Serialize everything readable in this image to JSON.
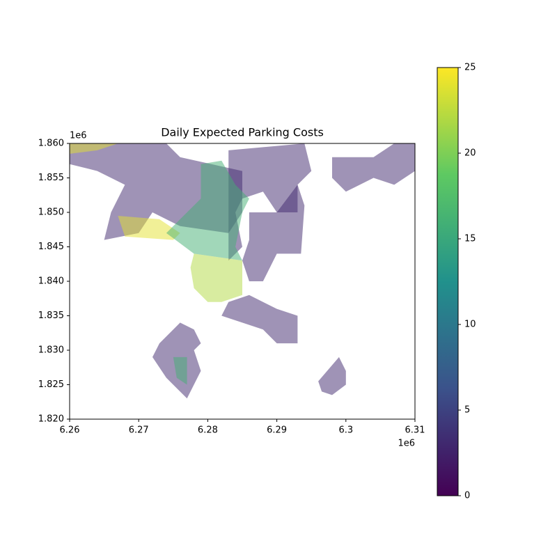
{
  "chart_data": {
    "type": "choropleth",
    "title": "Daily Expected Parking Costs",
    "xlim": [
      6.26,
      6.31
    ],
    "xticks": [
      6.26,
      6.27,
      6.28,
      6.29,
      6.3,
      6.31
    ],
    "ylim": [
      1.82,
      1.86
    ],
    "yticks": [
      {
        "value": 1.82,
        "label": "1.820"
      },
      {
        "value": 1.825,
        "label": "1.825"
      },
      {
        "value": 1.83,
        "label": "1.830"
      },
      {
        "value": 1.835,
        "label": "1.835"
      },
      {
        "value": 1.84,
        "label": "1.840"
      },
      {
        "value": 1.845,
        "label": "1.845"
      },
      {
        "value": 1.85,
        "label": "1.850"
      },
      {
        "value": 1.855,
        "label": "1.855"
      },
      {
        "value": 1.86,
        "label": "1.860"
      }
    ],
    "x_offset_text": "1e6",
    "y_offset_text": "1e6",
    "colormap": "viridis",
    "alpha": 0.5,
    "clim": [
      0,
      25
    ],
    "cticks": [
      0,
      5,
      10,
      15,
      20,
      25
    ],
    "regions": [
      {
        "value": 3,
        "outline": [
          [
            6.26,
            1.86
          ],
          [
            6.274,
            1.86
          ],
          [
            6.276,
            1.858
          ],
          [
            6.285,
            1.856
          ],
          [
            6.285,
            1.85
          ],
          [
            6.283,
            1.847
          ],
          [
            6.276,
            1.848
          ],
          [
            6.272,
            1.85
          ],
          [
            6.27,
            1.847
          ],
          [
            6.265,
            1.846
          ],
          [
            6.266,
            1.85
          ],
          [
            6.268,
            1.854
          ],
          [
            6.264,
            1.856
          ],
          [
            6.26,
            1.857
          ]
        ]
      },
      {
        "value": 24,
        "outline": [
          [
            6.26,
            1.86
          ],
          [
            6.267,
            1.86
          ],
          [
            6.264,
            1.859
          ],
          [
            6.26,
            1.8585
          ]
        ]
      },
      {
        "value": 24,
        "outline": [
          [
            6.267,
            1.8495
          ],
          [
            6.273,
            1.849
          ],
          [
            6.276,
            1.847
          ],
          [
            6.275,
            1.846
          ],
          [
            6.268,
            1.8465
          ]
        ]
      },
      {
        "value": 3,
        "outline": [
          [
            6.283,
            1.859
          ],
          [
            6.294,
            1.86
          ],
          [
            6.295,
            1.856
          ],
          [
            6.293,
            1.854
          ],
          [
            6.293,
            1.85
          ],
          [
            6.29,
            1.85
          ],
          [
            6.288,
            1.853
          ],
          [
            6.285,
            1.852
          ],
          [
            6.284,
            1.85
          ],
          [
            6.285,
            1.845
          ],
          [
            6.283,
            1.843
          ],
          [
            6.283,
            1.856
          ]
        ]
      },
      {
        "value": 3,
        "outline": [
          [
            6.286,
            1.85
          ],
          [
            6.29,
            1.85
          ],
          [
            6.293,
            1.854
          ],
          [
            6.294,
            1.851
          ],
          [
            6.2935,
            1.844
          ],
          [
            6.29,
            1.844
          ],
          [
            6.289,
            1.842
          ],
          [
            6.288,
            1.84
          ],
          [
            6.286,
            1.84
          ],
          [
            6.285,
            1.843
          ],
          [
            6.286,
            1.846
          ]
        ]
      },
      {
        "value": 16,
        "outline": [
          [
            6.279,
            1.857
          ],
          [
            6.282,
            1.8575
          ],
          [
            6.284,
            1.854
          ],
          [
            6.286,
            1.852
          ],
          [
            6.285,
            1.85
          ],
          [
            6.284,
            1.845
          ],
          [
            6.285,
            1.843
          ],
          [
            6.278,
            1.844
          ],
          [
            6.274,
            1.847
          ],
          [
            6.276,
            1.849
          ],
          [
            6.279,
            1.852
          ]
        ]
      },
      {
        "value": 22,
        "outline": [
          [
            6.278,
            1.844
          ],
          [
            6.285,
            1.843
          ],
          [
            6.285,
            1.838
          ],
          [
            6.282,
            1.837
          ],
          [
            6.28,
            1.837
          ],
          [
            6.278,
            1.839
          ],
          [
            6.2775,
            1.842
          ]
        ]
      },
      {
        "value": 3,
        "outline": [
          [
            6.283,
            1.837
          ],
          [
            6.286,
            1.838
          ],
          [
            6.29,
            1.836
          ],
          [
            6.293,
            1.835
          ],
          [
            6.293,
            1.831
          ],
          [
            6.29,
            1.831
          ],
          [
            6.288,
            1.833
          ],
          [
            6.282,
            1.835
          ]
        ]
      },
      {
        "value": 3,
        "outline": [
          [
            6.298,
            1.858
          ],
          [
            6.304,
            1.858
          ],
          [
            6.307,
            1.86
          ],
          [
            6.31,
            1.86
          ],
          [
            6.31,
            1.856
          ],
          [
            6.307,
            1.854
          ],
          [
            6.304,
            1.855
          ],
          [
            6.3,
            1.853
          ],
          [
            6.298,
            1.855
          ]
        ]
      },
      {
        "value": 3,
        "outline": [
          [
            6.273,
            1.831
          ],
          [
            6.276,
            1.834
          ],
          [
            6.278,
            1.833
          ],
          [
            6.279,
            1.831
          ],
          [
            6.278,
            1.83
          ],
          [
            6.279,
            1.827
          ],
          [
            6.277,
            1.823
          ],
          [
            6.274,
            1.826
          ],
          [
            6.272,
            1.829
          ]
        ]
      },
      {
        "value": 16,
        "outline": [
          [
            6.275,
            1.829
          ],
          [
            6.277,
            1.829
          ],
          [
            6.277,
            1.825
          ],
          [
            6.2755,
            1.826
          ]
        ]
      },
      {
        "value": 3,
        "outline": [
          [
            6.296,
            1.8255
          ],
          [
            6.299,
            1.829
          ],
          [
            6.3,
            1.827
          ],
          [
            6.3,
            1.825
          ],
          [
            6.298,
            1.8235
          ],
          [
            6.2965,
            1.824
          ]
        ]
      }
    ]
  }
}
